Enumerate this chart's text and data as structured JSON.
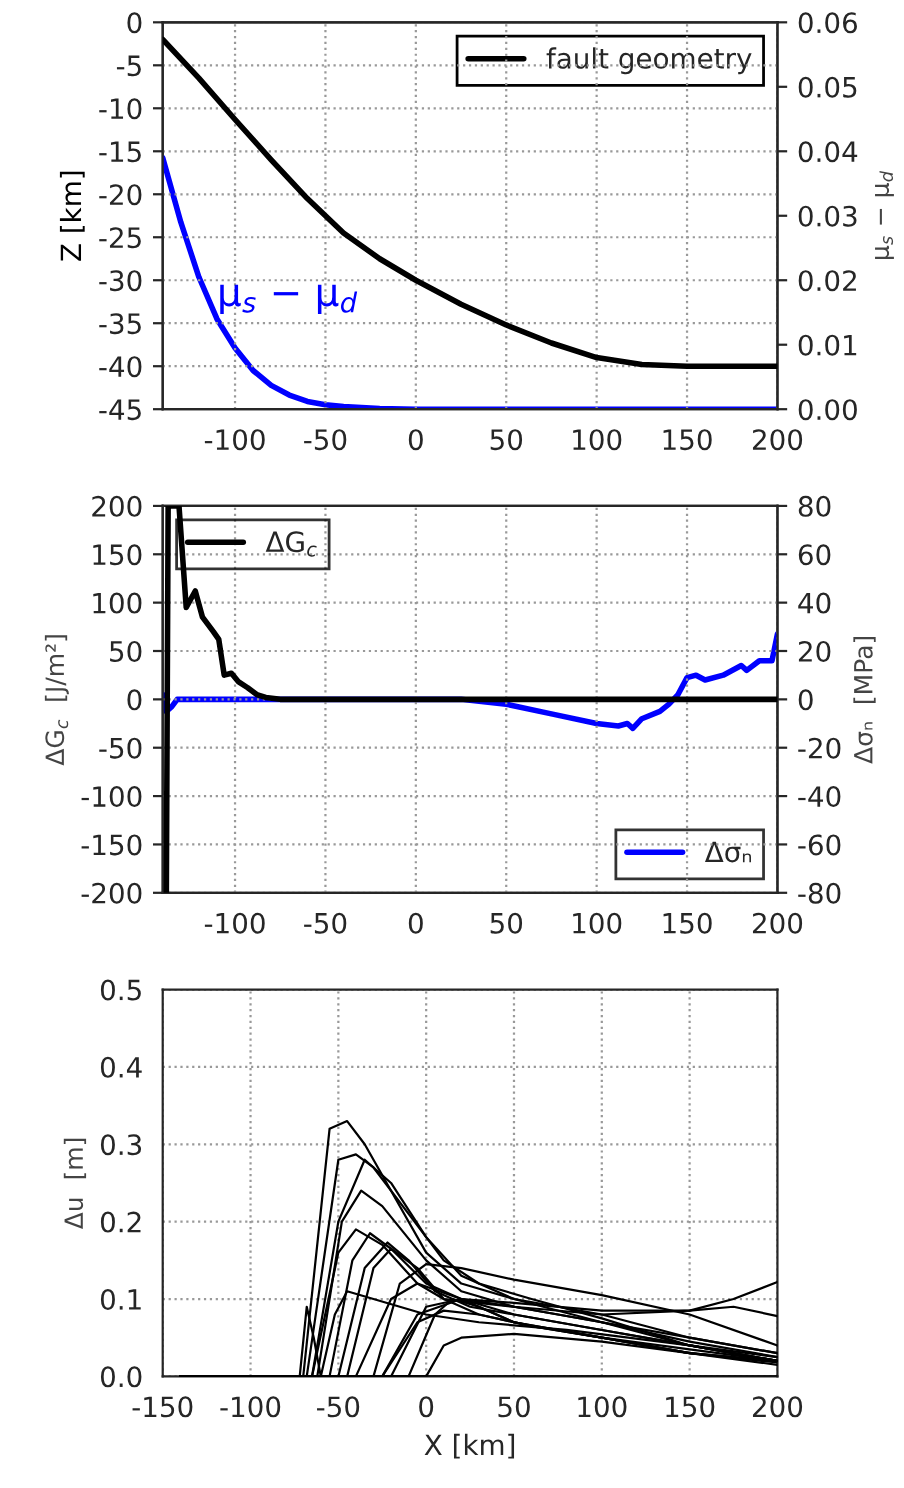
{
  "chart_data": [
    {
      "type": "line",
      "ylabel": "Z [km]",
      "y2label": "μ$_{s}$ − μ$_{d}$",
      "xlim": [
        -140,
        200
      ],
      "xticks": [
        -100,
        -50,
        0,
        50,
        100,
        150,
        200
      ],
      "ylim": [
        -45,
        0
      ],
      "yticks": [
        -45,
        -40,
        -35,
        -30,
        -25,
        -20,
        -15,
        -10,
        -5,
        0
      ],
      "y2lim": [
        0,
        0.06
      ],
      "y2ticks": [
        {
          "value": 0,
          "label": "0.00"
        },
        0.01,
        0.02,
        0.03,
        0.04,
        0.05,
        0.06
      ],
      "grid": true,
      "legend": "top right",
      "annotations": [
        {
          "text": "μ$_{s}$ − μ$_{d}$",
          "x": -110,
          "y": -33
        }
      ],
      "series": [
        {
          "name": "fault geometry",
          "color": "#000000",
          "x": [
            -140,
            -120,
            -100,
            -80,
            -60,
            -40,
            -20,
            0,
            25,
            50,
            75,
            100,
            125,
            150,
            200
          ],
          "values": [
            -2,
            -6.5,
            -11.3,
            -16,
            -20.5,
            -24.5,
            -27.5,
            -30,
            -32.8,
            -35.2,
            -37.3,
            -39,
            -39.8,
            -40,
            -40
          ]
        },
        {
          "color": "#0000ff",
          "axis": "y2",
          "x": [
            -140,
            -130,
            -120,
            -110,
            -100,
            -90,
            -80,
            -70,
            -60,
            -50,
            -40,
            -20,
            0,
            200
          ],
          "values": [
            0.039,
            0.029,
            0.0205,
            0.014,
            0.0095,
            0.006,
            0.0037,
            0.0022,
            0.0012,
            0.0007,
            0.0004,
            0.0001,
            0,
            0
          ]
        }
      ]
    },
    {
      "type": "line",
      "ylabel": "ΔG$_{c}$  [J/m²]",
      "y2label": "Δσₙ  [MPa]",
      "xlim": [
        -140,
        200
      ],
      "xticks": [
        -100,
        -50,
        0,
        50,
        100,
        150,
        200
      ],
      "ylim": [
        -200,
        200
      ],
      "yticks": [
        -200,
        -150,
        -100,
        -50,
        0,
        50,
        100,
        150,
        200
      ],
      "y2lim": [
        -80,
        80
      ],
      "y2ticks": [
        -80,
        -60,
        -40,
        -20,
        0,
        20,
        40,
        60,
        80
      ],
      "grid": true,
      "legend": [
        "top left",
        "bottom right"
      ],
      "series": [
        {
          "name": "ΔG$_{c}$",
          "color": "#000000",
          "x": [
            -138,
            -137,
            -131,
            -127,
            -122,
            -118,
            -112,
            -109,
            -106,
            -102,
            -98,
            -93,
            -88,
            -83,
            -75,
            200
          ],
          "values": [
            -200,
            200,
            200,
            95,
            112,
            85,
            70,
            62,
            25,
            27,
            18,
            12,
            5,
            2,
            0,
            0
          ]
        },
        {
          "name": "Δσₙ",
          "color": "#0000ff",
          "axis": "y2",
          "x": [
            -140,
            -138,
            -135,
            -132,
            -100,
            0,
            25,
            50,
            75,
            100,
            112,
            117,
            120,
            125,
            135,
            140,
            145,
            150,
            155,
            160,
            170,
            180,
            183,
            190,
            197,
            200
          ],
          "values": [
            2,
            -5,
            -3,
            0,
            0,
            0,
            0,
            -2,
            -6,
            -10,
            -11,
            -10,
            -12,
            -8,
            -5,
            -2,
            2,
            9,
            10,
            8,
            10,
            14,
            12,
            16,
            16,
            27
          ]
        }
      ]
    },
    {
      "type": "line",
      "xlabel": "X [km]",
      "ylabel": "Δu  [m]",
      "xlim": [
        -150,
        200
      ],
      "xticks": [
        -150,
        -100,
        -50,
        0,
        50,
        100,
        150,
        200
      ],
      "ylim": [
        0,
        0.5
      ],
      "yticks": [
        {
          "value": 0,
          "label": "0.0"
        },
        0.1,
        0.2,
        0.3,
        0.4,
        0.5
      ],
      "grid": true,
      "series": [
        {
          "color": "#000000",
          "x": [
            -140,
            -70,
            -55,
            -45,
            -35,
            -20,
            0,
            20,
            50,
            100,
            150,
            200
          ],
          "values": [
            0,
            0,
            0.32,
            0.33,
            0.3,
            0.24,
            0.16,
            0.12,
            0.1,
            0.07,
            0.04,
            0.02
          ]
        },
        {
          "color": "#000000",
          "x": [
            -140,
            -68,
            -50,
            -40,
            -30,
            -10,
            10,
            30,
            60,
            100,
            150,
            200
          ],
          "values": [
            0,
            0,
            0.28,
            0.287,
            0.27,
            0.21,
            0.15,
            0.12,
            0.1,
            0.075,
            0.04,
            0.025
          ]
        },
        {
          "color": "#000000",
          "x": [
            -140,
            -65,
            -50,
            -35,
            -20,
            0,
            20,
            50,
            100,
            150,
            200
          ],
          "values": [
            0,
            0,
            0.2,
            0.28,
            0.25,
            0.18,
            0.13,
            0.1,
            0.08,
            0.05,
            0.03
          ]
        },
        {
          "color": "#000000",
          "x": [
            -140,
            -62,
            -48,
            -37,
            -25,
            0,
            20,
            50,
            100,
            150,
            200
          ],
          "values": [
            0,
            0,
            0.2,
            0.24,
            0.22,
            0.15,
            0.11,
            0.09,
            0.07,
            0.045,
            0.025
          ]
        },
        {
          "color": "#000000",
          "x": [
            -140,
            -65,
            -50,
            -40,
            -25,
            -5,
            10,
            50,
            100,
            150,
            200
          ],
          "values": [
            0,
            0,
            0.16,
            0.19,
            0.17,
            0.12,
            0.1,
            0.09,
            0.07,
            0.05,
            0.03
          ]
        },
        {
          "color": "#000000",
          "x": [
            -140,
            -55,
            -42,
            -32,
            -20,
            0,
            20,
            50,
            100,
            150,
            200
          ],
          "values": [
            0,
            0,
            0.15,
            0.185,
            0.165,
            0.12,
            0.1,
            0.08,
            0.06,
            0.04,
            0.02
          ]
        },
        {
          "color": "#000000",
          "x": [
            -140,
            -50,
            -35,
            -22,
            -10,
            5,
            25,
            50,
            100,
            150,
            200
          ],
          "values": [
            0,
            0,
            0.14,
            0.173,
            0.15,
            0.11,
            0.09,
            0.08,
            0.06,
            0.04,
            0.02
          ]
        },
        {
          "color": "#000000",
          "x": [
            -140,
            -45,
            -30,
            -20,
            -5,
            10,
            30,
            60,
            100,
            150,
            200
          ],
          "values": [
            0,
            0,
            0.14,
            0.165,
            0.14,
            0.1,
            0.08,
            0.065,
            0.05,
            0.03,
            0.018
          ]
        },
        {
          "color": "#000000",
          "x": [
            -140,
            -30,
            -15,
            0,
            20,
            50,
            100,
            150,
            200
          ],
          "values": [
            0,
            0,
            0.12,
            0.145,
            0.14,
            0.125,
            0.105,
            0.08,
            0.04
          ]
        },
        {
          "color": "#000000",
          "x": [
            -140,
            -20,
            0,
            20,
            50,
            100,
            150,
            175,
            200
          ],
          "values": [
            0,
            0,
            0.09,
            0.1,
            0.09,
            0.08,
            0.085,
            0.1,
            0.122
          ]
        },
        {
          "color": "#000000",
          "x": [
            -140,
            -25,
            -5,
            20,
            50,
            100,
            150,
            175,
            200
          ],
          "values": [
            0,
            0,
            0.08,
            0.1,
            0.095,
            0.085,
            0.085,
            0.09,
            0.078
          ]
        },
        {
          "color": "#000000",
          "x": [
            -140,
            -40,
            -20,
            -5,
            20,
            50,
            100,
            150,
            200
          ],
          "values": [
            0,
            0,
            0.1,
            0.12,
            0.1,
            0.07,
            0.05,
            0.03,
            0.02
          ]
        },
        {
          "color": "#000000",
          "x": [
            -140,
            -25,
            -5,
            10,
            30,
            60,
            100,
            150,
            200
          ],
          "values": [
            0,
            0,
            0.07,
            0.085,
            0.08,
            0.065,
            0.05,
            0.03,
            0.02
          ]
        },
        {
          "color": "#000000",
          "x": [
            -140,
            -10,
            5,
            15,
            30,
            50,
            100,
            150,
            200
          ],
          "values": [
            0,
            0,
            0.08,
            0.1,
            0.09,
            0.07,
            0.05,
            0.035,
            0.02
          ]
        },
        {
          "color": "#000000",
          "x": [
            -140,
            0,
            10,
            20,
            50,
            100,
            150,
            200
          ],
          "values": [
            0,
            0,
            0.04,
            0.05,
            0.055,
            0.045,
            0.03,
            0.015
          ]
        },
        {
          "color": "#000000",
          "x": [
            -140,
            -72,
            -68,
            -64,
            -60,
            200
          ],
          "values": [
            0,
            0,
            0.09,
            0.05,
            0,
            0
          ]
        },
        {
          "color": "#000000",
          "x": [
            -140,
            -60,
            -52,
            -45,
            -30,
            0,
            30,
            80,
            150,
            200
          ],
          "values": [
            0,
            0,
            0.08,
            0.11,
            0.1,
            0.08,
            0.07,
            0.06,
            0.04,
            0.02
          ]
        }
      ]
    }
  ]
}
